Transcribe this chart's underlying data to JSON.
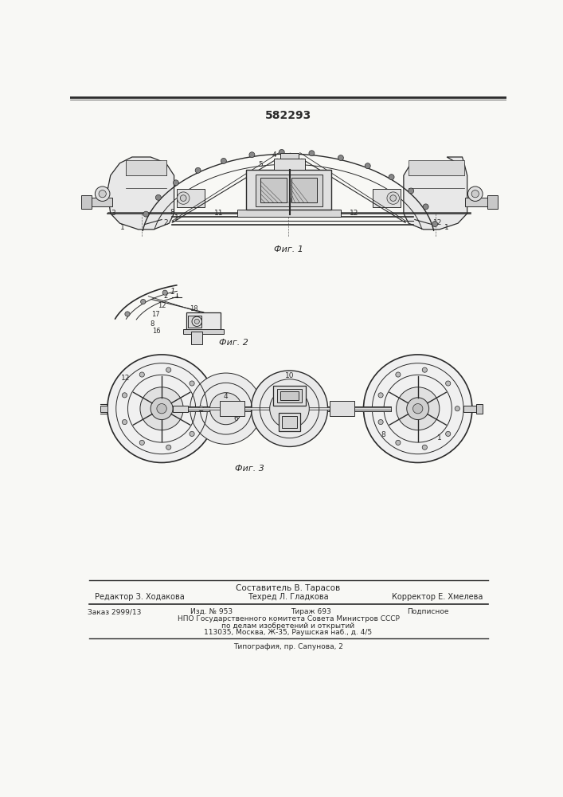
{
  "patent_number": "582293",
  "background_color": "#f8f8f5",
  "line_color": "#2a2a2a",
  "fig1_caption": "Фиг. 1",
  "fig2_caption": "Фиг. 2",
  "fig3_caption": "Фиг. 3",
  "footer_composer": "Составитель В. Тарасов",
  "footer_editor": "Редактор З. Ходакова",
  "footer_tech": "Техред Л. Гладкова",
  "footer_corrector": "Корректор Е. Хмелева",
  "footer_order": "Заказ 2999/13",
  "footer_izd": "Изд. № 953",
  "footer_tiraz": "Тираж 693",
  "footer_podpisnoe": "Подписное",
  "footer_npo": "НПО Государственного комитета Совета Министров СССР",
  "footer_po": "по делам изобретений и открытий",
  "footer_addr": "113035, Москва, Ж-35, Раушская наб., д. 4/5",
  "footer_tipograf": "Типография, пр. Сапунова, 2"
}
